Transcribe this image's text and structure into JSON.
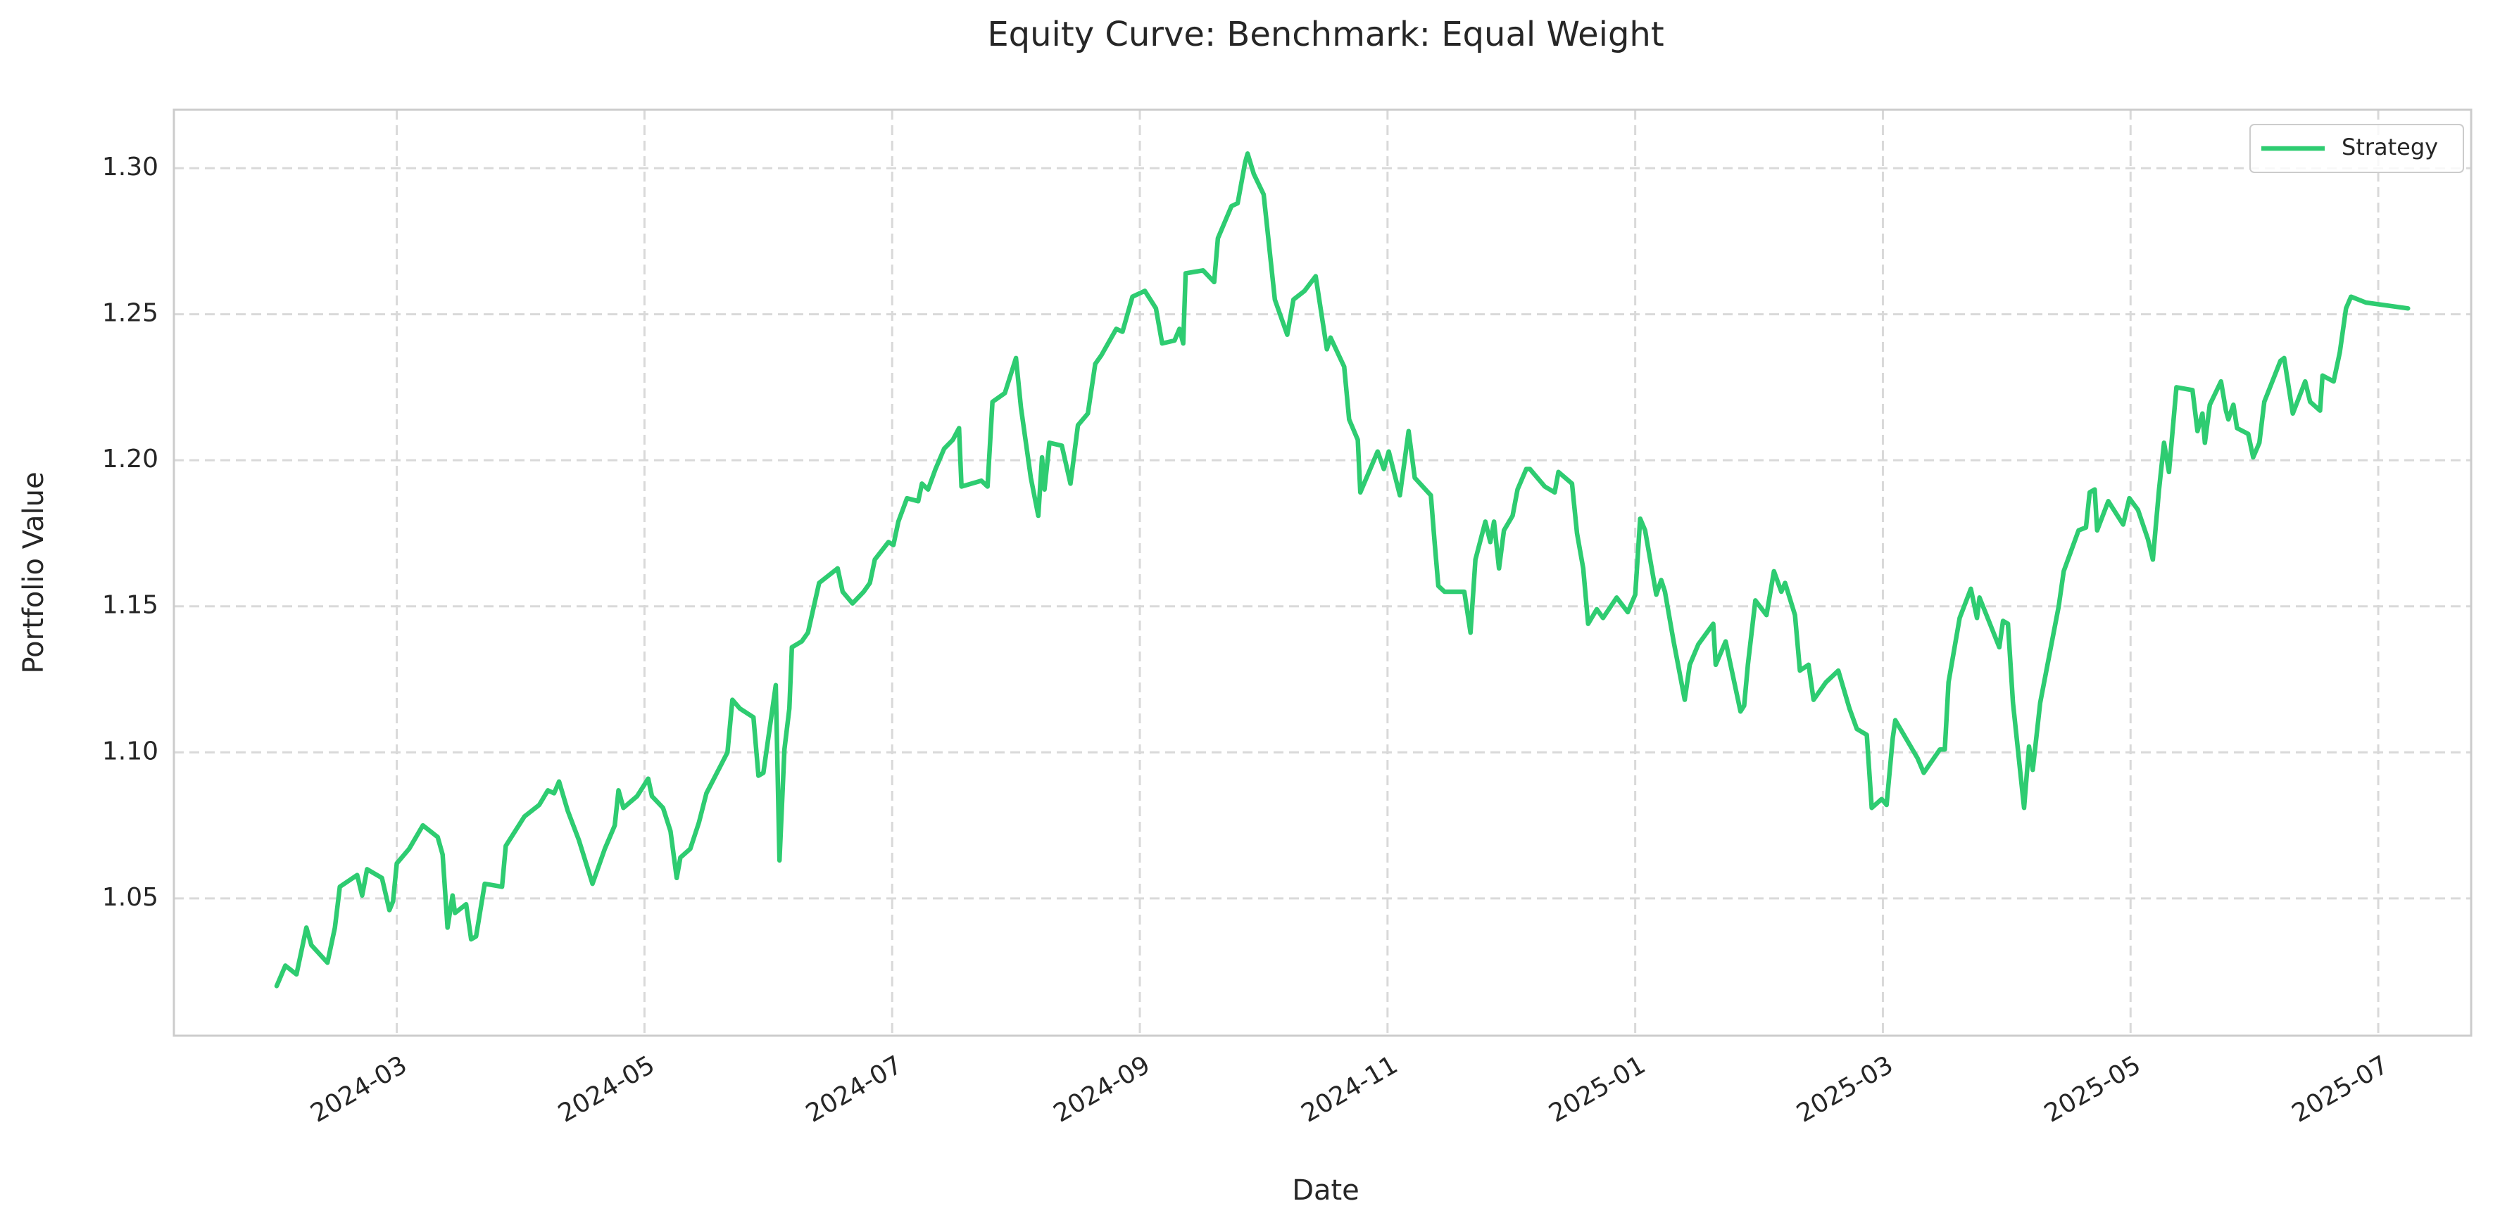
{
  "chart_data": {
    "type": "line",
    "title": "Equity Curve: Benchmark: Equal Weight",
    "xlabel": "Date",
    "ylabel": "Portfolio Value",
    "x": [
      2.03,
      2.1,
      2.19,
      2.27,
      2.31,
      2.44,
      2.5,
      2.54,
      2.68,
      2.72,
      2.76,
      2.88,
      2.94,
      2.97,
      3.0,
      3.1,
      3.21,
      3.33,
      3.37,
      3.41,
      3.45,
      3.47,
      3.56,
      3.6,
      3.64,
      3.71,
      3.85,
      3.88,
      4.03,
      4.15,
      4.22,
      4.27,
      4.31,
      4.38,
      4.47,
      4.58,
      4.68,
      4.76,
      4.79,
      4.83,
      4.94,
      5.03,
      5.06,
      5.15,
      5.21,
      5.26,
      5.29,
      5.37,
      5.44,
      5.5,
      5.67,
      5.71,
      5.77,
      5.88,
      5.92,
      5.96,
      6.06,
      6.09,
      6.13,
      6.17,
      6.19,
      6.27,
      6.32,
      6.41,
      6.56,
      6.6,
      6.68,
      6.77,
      6.82,
      6.86,
      6.97,
      7.01,
      7.05,
      7.12,
      7.21,
      7.24,
      7.29,
      7.35,
      7.42,
      7.49,
      7.54,
      7.56,
      7.72,
      7.77,
      7.81,
      7.91,
      8.0,
      8.04,
      8.12,
      8.18,
      8.21,
      8.23,
      8.27,
      8.37,
      8.44,
      8.5,
      8.58,
      8.64,
      8.69,
      8.81,
      8.86,
      8.94,
      9.04,
      9.13,
      9.18,
      9.28,
      9.32,
      9.35,
      9.37,
      9.51,
      9.6,
      9.63,
      9.68,
      9.74,
      9.79,
      9.85,
      9.87,
      9.92,
      10.0,
      10.09,
      10.19,
      10.24,
      10.33,
      10.42,
      10.51,
      10.54,
      10.65,
      10.69,
      10.76,
      10.78,
      10.92,
      10.97,
      11.01,
      11.1,
      11.17,
      11.22,
      11.35,
      11.38,
      11.41,
      11.46,
      11.62,
      11.67,
      11.71,
      11.79,
      11.83,
      11.86,
      11.9,
      11.94,
      12.01,
      12.05,
      12.12,
      12.15,
      12.27,
      12.35,
      12.38,
      12.49,
      12.53,
      12.58,
      12.62,
      12.69,
      12.74,
      12.85,
      12.94,
      13.0,
      13.04,
      13.08,
      13.17,
      13.21,
      13.24,
      13.31,
      13.4,
      13.44,
      13.51,
      13.63,
      13.65,
      13.73,
      13.77,
      13.85,
      13.88,
      13.91,
      13.97,
      14.06,
      14.12,
      14.18,
      14.21,
      14.29,
      14.33,
      14.4,
      14.44,
      14.54,
      14.64,
      14.73,
      14.79,
      14.87,
      14.91,
      14.99,
      15.03,
      15.08,
      15.1,
      15.28,
      15.33,
      15.46,
      15.5,
      15.53,
      15.62,
      15.71,
      15.76,
      15.78,
      15.94,
      15.97,
      16.01,
      16.05,
      16.14,
      16.18,
      16.21,
      16.27,
      16.42,
      16.46,
      16.58,
      16.64,
      16.67,
      16.71,
      16.73,
      16.82,
      16.94,
      16.99,
      17.06,
      17.14,
      17.18,
      17.23,
      17.27,
      17.31,
      17.37,
      17.5,
      17.54,
      17.58,
      17.6,
      17.64,
      17.73,
      17.77,
      17.79,
      17.83,
      17.86,
      17.95,
      17.99,
      18.04,
      18.08,
      18.21,
      18.24,
      18.31,
      18.41,
      18.45,
      18.53,
      18.55,
      18.64,
      18.69,
      18.74,
      18.78,
      18.9,
      19.24
    ],
    "series": [
      {
        "name": "Strategy",
        "color": "#2ecc71",
        "values": [
          1.02,
          1.027,
          1.024,
          1.04,
          1.034,
          1.028,
          1.04,
          1.054,
          1.058,
          1.051,
          1.06,
          1.057,
          1.046,
          1.049,
          1.062,
          1.067,
          1.075,
          1.071,
          1.065,
          1.04,
          1.051,
          1.045,
          1.048,
          1.036,
          1.037,
          1.055,
          1.054,
          1.068,
          1.078,
          1.082,
          1.087,
          1.086,
          1.09,
          1.08,
          1.07,
          1.055,
          1.067,
          1.075,
          1.087,
          1.081,
          1.085,
          1.091,
          1.085,
          1.081,
          1.073,
          1.057,
          1.064,
          1.067,
          1.076,
          1.086,
          1.1,
          1.118,
          1.115,
          1.112,
          1.092,
          1.093,
          1.123,
          1.063,
          1.101,
          1.115,
          1.136,
          1.138,
          1.141,
          1.158,
          1.163,
          1.155,
          1.151,
          1.155,
          1.158,
          1.166,
          1.172,
          1.171,
          1.179,
          1.187,
          1.186,
          1.192,
          1.19,
          1.197,
          1.204,
          1.207,
          1.211,
          1.191,
          1.193,
          1.191,
          1.22,
          1.223,
          1.235,
          1.218,
          1.194,
          1.181,
          1.201,
          1.19,
          1.206,
          1.205,
          1.192,
          1.212,
          1.216,
          1.233,
          1.236,
          1.245,
          1.244,
          1.256,
          1.258,
          1.252,
          1.24,
          1.241,
          1.245,
          1.24,
          1.264,
          1.265,
          1.261,
          1.276,
          1.281,
          1.287,
          1.288,
          1.302,
          1.305,
          1.298,
          1.291,
          1.255,
          1.243,
          1.255,
          1.258,
          1.263,
          1.238,
          1.242,
          1.232,
          1.214,
          1.207,
          1.189,
          1.203,
          1.197,
          1.203,
          1.188,
          1.21,
          1.194,
          1.188,
          1.172,
          1.157,
          1.155,
          1.155,
          1.141,
          1.166,
          1.179,
          1.172,
          1.179,
          1.163,
          1.176,
          1.181,
          1.19,
          1.197,
          1.197,
          1.191,
          1.189,
          1.196,
          1.192,
          1.175,
          1.163,
          1.144,
          1.149,
          1.146,
          1.153,
          1.148,
          1.154,
          1.18,
          1.176,
          1.154,
          1.159,
          1.155,
          1.138,
          1.118,
          1.13,
          1.137,
          1.144,
          1.13,
          1.138,
          1.13,
          1.114,
          1.116,
          1.13,
          1.152,
          1.147,
          1.162,
          1.155,
          1.158,
          1.147,
          1.128,
          1.13,
          1.118,
          1.124,
          1.128,
          1.115,
          1.108,
          1.106,
          1.081,
          1.084,
          1.082,
          1.105,
          1.111,
          1.098,
          1.093,
          1.101,
          1.101,
          1.124,
          1.146,
          1.156,
          1.146,
          1.153,
          1.136,
          1.145,
          1.144,
          1.117,
          1.081,
          1.102,
          1.094,
          1.117,
          1.15,
          1.162,
          1.176,
          1.177,
          1.189,
          1.19,
          1.176,
          1.186,
          1.178,
          1.187,
          1.183,
          1.173,
          1.166,
          1.19,
          1.206,
          1.196,
          1.225,
          1.224,
          1.21,
          1.216,
          1.206,
          1.219,
          1.227,
          1.217,
          1.214,
          1.219,
          1.211,
          1.209,
          1.201,
          1.206,
          1.22,
          1.234,
          1.235,
          1.216,
          1.227,
          1.22,
          1.217,
          1.229,
          1.227,
          1.237,
          1.252,
          1.256,
          1.254,
          1.252
        ]
      }
    ],
    "xlim": [
      1.2,
      19.75
    ],
    "xticks": [
      {
        "value": 3,
        "label": "2024-03"
      },
      {
        "value": 5,
        "label": "2024-05"
      },
      {
        "value": 7,
        "label": "2024-07"
      },
      {
        "value": 9,
        "label": "2024-09"
      },
      {
        "value": 11,
        "label": "2024-11"
      },
      {
        "value": 13,
        "label": "2025-01"
      },
      {
        "value": 15,
        "label": "2025-03"
      },
      {
        "value": 17,
        "label": "2025-05"
      },
      {
        "value": 19,
        "label": "2025-07"
      }
    ],
    "ylim": [
      1.003,
      1.32
    ],
    "yticks": [
      1.05,
      {
        "value": 1.1,
        "label": "1.10"
      },
      1.15,
      {
        "value": 1.2,
        "label": "1.20"
      },
      1.25,
      {
        "value": 1.3,
        "label": "1.30"
      }
    ],
    "grid": true,
    "legend": "upper right"
  }
}
